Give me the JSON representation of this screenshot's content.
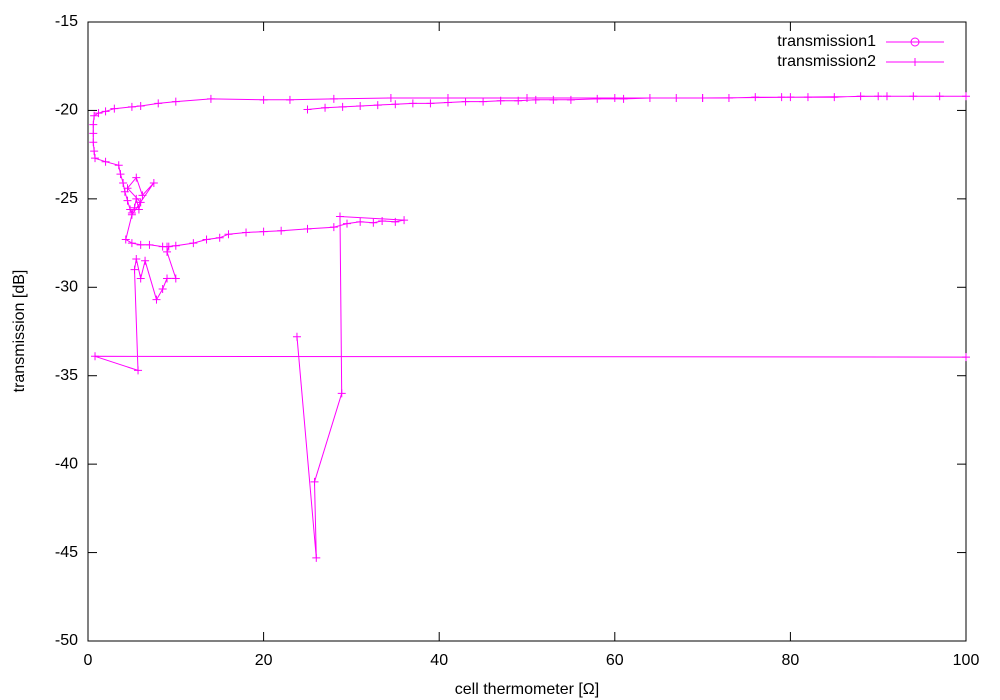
{
  "chart_data": {
    "type": "line",
    "xlabel": "cell thermometer [Ω]",
    "ylabel": "transmission [dB]",
    "xlim": [
      0,
      100
    ],
    "xticks": [
      0,
      20,
      40,
      60,
      80,
      100
    ],
    "ylim": [
      -50,
      -15
    ],
    "yticks": [
      -50,
      -45,
      -40,
      -35,
      -30,
      -25,
      -20,
      -15
    ],
    "legend": "upper right",
    "series": [
      {
        "name": "transmission1",
        "color": "#ff00ff",
        "marker": "circle",
        "x": [],
        "values": []
      },
      {
        "name": "transmission2",
        "color": "#ff00ff",
        "marker": "plus",
        "x": [
          25,
          27,
          29,
          31,
          33,
          35,
          37,
          39,
          41,
          43,
          45,
          47,
          49,
          51,
          53,
          55,
          58,
          61,
          64,
          67,
          70,
          73,
          76,
          79,
          82,
          85,
          88,
          91,
          94,
          97,
          100,
          90,
          80,
          70,
          60,
          50,
          41,
          34.5,
          28,
          23,
          20,
          14,
          10,
          8,
          6,
          5,
          3,
          2,
          1.2,
          0.7,
          0.6,
          0.6,
          0.6,
          0.7,
          0.8,
          2,
          3.5,
          3.7,
          4,
          4.2,
          4.5,
          4.8,
          5,
          5.3,
          5.5,
          5.8,
          6,
          4.5,
          5.5,
          6.2,
          7.5,
          5,
          4.3,
          5,
          6,
          7,
          8.5,
          9,
          10,
          12,
          13.5,
          15,
          16,
          18,
          20,
          22,
          25,
          28,
          29.5,
          31,
          32.5,
          33.5,
          35,
          36,
          28.7,
          28.9,
          25.8,
          26,
          23.8,
          null,
          100,
          0.8,
          5.7,
          5.3,
          5.5,
          6,
          6.5,
          7.8,
          8.5,
          9,
          10,
          9,
          9.2
        ],
        "values": [
          -19.95,
          -19.85,
          -19.8,
          -19.75,
          -19.7,
          -19.65,
          -19.6,
          -19.6,
          -19.55,
          -19.5,
          -19.5,
          -19.45,
          -19.45,
          -19.4,
          -19.4,
          -19.4,
          -19.35,
          -19.35,
          -19.3,
          -19.3,
          -19.3,
          -19.3,
          -19.25,
          -19.25,
          -19.25,
          -19.25,
          -19.2,
          -19.2,
          -19.2,
          -19.2,
          -19.2,
          -19.2,
          -19.25,
          -19.3,
          -19.3,
          -19.3,
          -19.3,
          -19.3,
          -19.35,
          -19.4,
          -19.4,
          -19.35,
          -19.5,
          -19.6,
          -19.75,
          -19.8,
          -19.9,
          -20.05,
          -20.15,
          -20.3,
          -20.8,
          -21.3,
          -21.8,
          -22.3,
          -22.7,
          -22.9,
          -23.1,
          -23.6,
          -24.1,
          -24.6,
          -25.1,
          -25.6,
          -25.8,
          -25.5,
          -25,
          -25.6,
          -25.2,
          -24.4,
          -23.8,
          -24.8,
          -24.1,
          -25.9,
          -27.3,
          -27.5,
          -27.6,
          -27.6,
          -27.7,
          -27.7,
          -27.65,
          -27.5,
          -27.3,
          -27.2,
          -27.0,
          -26.9,
          -26.85,
          -26.8,
          -26.7,
          -26.6,
          -26.4,
          -26.3,
          -26.35,
          -26.25,
          -26.3,
          -26.2,
          -26.0,
          -36,
          -41,
          -45.3,
          -32.8,
          null,
          -33.95,
          -33.9,
          -34.7,
          -29,
          -28.4,
          -29.5,
          -28.5,
          -30.7,
          -30.1,
          -29.5,
          -29.5,
          -28,
          -27.7
        ]
      }
    ]
  }
}
